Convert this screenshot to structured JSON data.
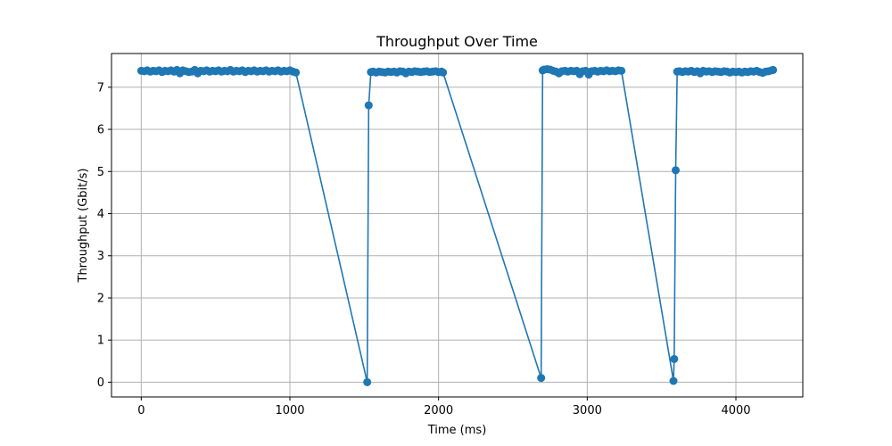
{
  "chart_data": {
    "type": "line",
    "title": "Throughput Over Time",
    "xlabel": "Time (ms)",
    "ylabel": "Throughput (Gbit/s)",
    "xlim": [
      -200,
      4450
    ],
    "ylim": [
      -0.35,
      7.8
    ],
    "xticks": [
      0,
      1000,
      2000,
      3000,
      4000
    ],
    "yticks": [
      0,
      1,
      2,
      3,
      4,
      5,
      6,
      7
    ],
    "grid": true,
    "colors": {
      "series": "#1f77b4",
      "grid": "#b0b0b0",
      "axis": "#000000"
    },
    "series": [
      {
        "marker": "circle",
        "points": [
          [
            0,
            7.39
          ],
          [
            20,
            7.38
          ],
          [
            40,
            7.4
          ],
          [
            60,
            7.37
          ],
          [
            80,
            7.39
          ],
          [
            100,
            7.38
          ],
          [
            120,
            7.4
          ],
          [
            140,
            7.36
          ],
          [
            160,
            7.39
          ],
          [
            180,
            7.38
          ],
          [
            200,
            7.4
          ],
          [
            220,
            7.37
          ],
          [
            240,
            7.41
          ],
          [
            260,
            7.33
          ],
          [
            280,
            7.4
          ],
          [
            300,
            7.38
          ],
          [
            320,
            7.36
          ],
          [
            340,
            7.37
          ],
          [
            360,
            7.41
          ],
          [
            380,
            7.33
          ],
          [
            400,
            7.39
          ],
          [
            420,
            7.38
          ],
          [
            440,
            7.4
          ],
          [
            460,
            7.37
          ],
          [
            480,
            7.39
          ],
          [
            500,
            7.38
          ],
          [
            520,
            7.4
          ],
          [
            540,
            7.37
          ],
          [
            560,
            7.39
          ],
          [
            580,
            7.38
          ],
          [
            600,
            7.41
          ],
          [
            620,
            7.37
          ],
          [
            640,
            7.39
          ],
          [
            660,
            7.38
          ],
          [
            680,
            7.4
          ],
          [
            700,
            7.36
          ],
          [
            720,
            7.39
          ],
          [
            740,
            7.38
          ],
          [
            760,
            7.4
          ],
          [
            780,
            7.37
          ],
          [
            800,
            7.39
          ],
          [
            820,
            7.38
          ],
          [
            840,
            7.4
          ],
          [
            860,
            7.37
          ],
          [
            880,
            7.39
          ],
          [
            900,
            7.38
          ],
          [
            920,
            7.4
          ],
          [
            940,
            7.37
          ],
          [
            960,
            7.39
          ],
          [
            980,
            7.38
          ],
          [
            1000,
            7.4
          ],
          [
            1020,
            7.37
          ],
          [
            1040,
            7.35
          ],
          [
            1520,
            0.0
          ],
          [
            1530,
            6.57
          ],
          [
            1545,
            7.36
          ],
          [
            1560,
            7.37
          ],
          [
            1580,
            7.35
          ],
          [
            1600,
            7.37
          ],
          [
            1620,
            7.36
          ],
          [
            1640,
            7.35
          ],
          [
            1660,
            7.37
          ],
          [
            1680,
            7.36
          ],
          [
            1700,
            7.37
          ],
          [
            1720,
            7.35
          ],
          [
            1740,
            7.38
          ],
          [
            1760,
            7.37
          ],
          [
            1780,
            7.33
          ],
          [
            1800,
            7.37
          ],
          [
            1820,
            7.36
          ],
          [
            1840,
            7.38
          ],
          [
            1860,
            7.37
          ],
          [
            1880,
            7.36
          ],
          [
            1900,
            7.37
          ],
          [
            1920,
            7.38
          ],
          [
            1940,
            7.36
          ],
          [
            1960,
            7.37
          ],
          [
            1980,
            7.38
          ],
          [
            2000,
            7.36
          ],
          [
            2020,
            7.37
          ],
          [
            2030,
            7.35
          ],
          [
            2690,
            0.1
          ],
          [
            2700,
            7.4
          ],
          [
            2710,
            7.42
          ],
          [
            2730,
            7.43
          ],
          [
            2750,
            7.42
          ],
          [
            2770,
            7.39
          ],
          [
            2790,
            7.37
          ],
          [
            2810,
            7.33
          ],
          [
            2830,
            7.38
          ],
          [
            2850,
            7.39
          ],
          [
            2870,
            7.37
          ],
          [
            2890,
            7.39
          ],
          [
            2910,
            7.38
          ],
          [
            2930,
            7.39
          ],
          [
            2950,
            7.31
          ],
          [
            2970,
            7.38
          ],
          [
            2990,
            7.39
          ],
          [
            3010,
            7.3
          ],
          [
            3030,
            7.38
          ],
          [
            3050,
            7.39
          ],
          [
            3070,
            7.37
          ],
          [
            3090,
            7.39
          ],
          [
            3110,
            7.38
          ],
          [
            3130,
            7.4
          ],
          [
            3150,
            7.38
          ],
          [
            3170,
            7.39
          ],
          [
            3190,
            7.38
          ],
          [
            3210,
            7.4
          ],
          [
            3230,
            7.39
          ],
          [
            3580,
            0.03
          ],
          [
            3585,
            0.55
          ],
          [
            3595,
            5.03
          ],
          [
            3605,
            7.37
          ],
          [
            3620,
            7.38
          ],
          [
            3640,
            7.36
          ],
          [
            3660,
            7.38
          ],
          [
            3680,
            7.37
          ],
          [
            3700,
            7.39
          ],
          [
            3720,
            7.36
          ],
          [
            3740,
            7.38
          ],
          [
            3760,
            7.33
          ],
          [
            3780,
            7.39
          ],
          [
            3800,
            7.37
          ],
          [
            3820,
            7.38
          ],
          [
            3840,
            7.36
          ],
          [
            3860,
            7.38
          ],
          [
            3880,
            7.37
          ],
          [
            3900,
            7.36
          ],
          [
            3920,
            7.38
          ],
          [
            3940,
            7.37
          ],
          [
            3960,
            7.35
          ],
          [
            3980,
            7.37
          ],
          [
            4000,
            7.36
          ],
          [
            4020,
            7.37
          ],
          [
            4040,
            7.35
          ],
          [
            4060,
            7.37
          ],
          [
            4080,
            7.36
          ],
          [
            4100,
            7.38
          ],
          [
            4120,
            7.37
          ],
          [
            4140,
            7.39
          ],
          [
            4160,
            7.36
          ],
          [
            4180,
            7.34
          ],
          [
            4200,
            7.37
          ],
          [
            4220,
            7.38
          ],
          [
            4240,
            7.4
          ],
          [
            4250,
            7.41
          ]
        ]
      }
    ]
  }
}
